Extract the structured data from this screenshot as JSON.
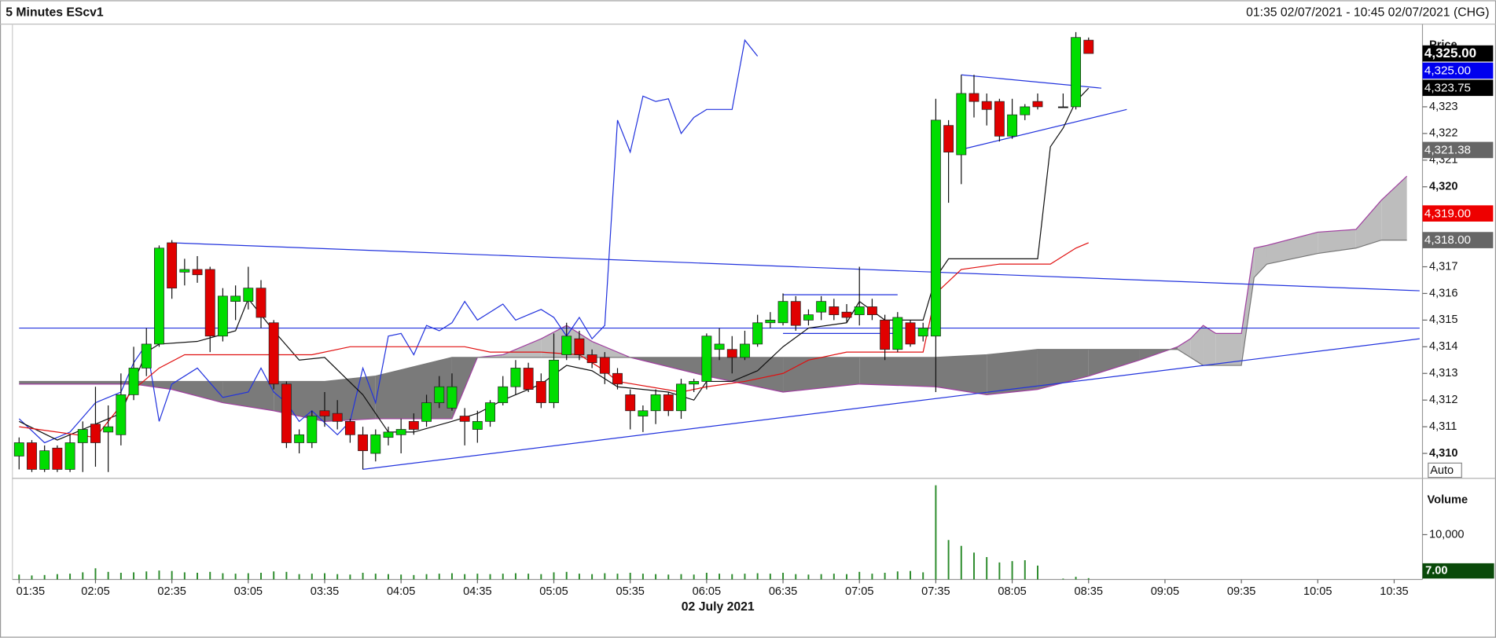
{
  "chart_data": {
    "type": "candlestick",
    "title": "5 Minutes EScv1",
    "range_text": "01:35 02/07/2021 - 10:45 02/07/2021 (CHG)",
    "date_label": "02 July 2021",
    "xlim": [
      "01:35",
      "10:45"
    ],
    "xticks": [
      "01:35",
      "02:05",
      "02:35",
      "03:05",
      "03:35",
      "04:05",
      "04:35",
      "05:05",
      "05:35",
      "06:05",
      "06:35",
      "07:05",
      "07:35",
      "08:05",
      "08:35",
      "09:05",
      "09:35",
      "10:05",
      "10:35"
    ],
    "ylim": [
      4309.1,
      4326.1
    ],
    "yticks": [
      {
        "value": 4310,
        "label": "4,310"
      },
      {
        "value": 4311,
        "label": "4,311"
      },
      {
        "value": 4312,
        "label": "4,312"
      },
      {
        "value": 4313,
        "label": "4,313"
      },
      {
        "value": 4314,
        "label": "4,314"
      },
      {
        "value": 4315,
        "label": "4,315"
      },
      {
        "value": 4316,
        "label": "4,316"
      },
      {
        "value": 4317,
        "label": "4,317"
      },
      {
        "value": 4320,
        "label": "4,320"
      },
      {
        "value": 4321,
        "label": "4,321"
      },
      {
        "value": 4322,
        "label": "4,322"
      },
      {
        "value": 4323,
        "label": "4,323"
      }
    ],
    "axis_label": "Price",
    "auto_button": "Auto",
    "up_color": "#00dd00",
    "down_color": "#e00000",
    "x": [
      "01:35",
      "01:40",
      "01:45",
      "01:50",
      "01:55",
      "02:00",
      "02:05",
      "02:10",
      "02:15",
      "02:20",
      "02:25",
      "02:30",
      "02:35",
      "02:40",
      "02:45",
      "02:50",
      "02:55",
      "03:00",
      "03:05",
      "03:10",
      "03:15",
      "03:20",
      "03:25",
      "03:30",
      "03:35",
      "03:40",
      "03:45",
      "03:50",
      "03:55",
      "04:00",
      "04:05",
      "04:10",
      "04:15",
      "04:20",
      "04:25",
      "04:30",
      "04:35",
      "04:40",
      "04:45",
      "04:50",
      "04:55",
      "05:00",
      "05:05",
      "05:10",
      "05:15",
      "05:20",
      "05:25",
      "05:30",
      "05:35",
      "05:40",
      "05:45",
      "05:50",
      "05:55",
      "06:00",
      "06:05",
      "06:10",
      "06:15",
      "06:20",
      "06:25",
      "06:30",
      "06:35",
      "06:40",
      "06:45",
      "06:50",
      "06:55",
      "07:00",
      "07:05",
      "07:10",
      "07:15",
      "07:20",
      "07:25",
      "07:30",
      "07:35",
      "07:40",
      "07:45",
      "07:50",
      "07:55",
      "08:00",
      "08:05",
      "08:10",
      "08:15",
      "08:25",
      "08:30",
      "08:35"
    ],
    "open": [
      4309.9,
      4310.4,
      4309.4,
      4310.2,
      4309.4,
      4310.4,
      4311.1,
      4310.8,
      4310.7,
      4312.2,
      4313.2,
      4314.1,
      4317.9,
      4316.8,
      4316.9,
      4316.9,
      4314.4,
      4315.7,
      4315.7,
      4316.2,
      4314.9,
      4312.6,
      4310.4,
      4310.4,
      4311.6,
      4311.5,
      4311.2,
      4310.7,
      4310.0,
      4310.6,
      4310.7,
      4311.2,
      4311.2,
      4311.9,
      4311.7,
      4311.4,
      4310.9,
      4311.2,
      4311.9,
      4312.5,
      4313.2,
      4312.7,
      4311.9,
      4313.7,
      4314.3,
      4313.7,
      4313.6,
      4313.0,
      4312.2,
      4311.4,
      4311.6,
      4312.2,
      4311.6,
      4312.6,
      4312.7,
      4313.9,
      4313.9,
      4313.6,
      4314.1,
      4314.9,
      4314.9,
      4315.7,
      4315.0,
      4315.3,
      4315.5,
      4315.3,
      4315.2,
      4315.5,
      4315.0,
      4313.9,
      4314.9,
      4314.4,
      4314.4,
      4322.3,
      4321.2,
      4323.5,
      4323.2,
      4323.2,
      4321.9,
      4322.7,
      4323.2,
      4323.0,
      4323.0,
      4325.5
    ],
    "high": [
      4310.6,
      4310.5,
      4310.3,
      4310.3,
      4310.7,
      4311.2,
      4312.5,
      4311.8,
      4313.0,
      4314.0,
      4314.7,
      4317.8,
      4318.0,
      4317.3,
      4317.4,
      4317.0,
      4316.2,
      4316.3,
      4317.0,
      4316.5,
      4315.0,
      4312.7,
      4310.9,
      4311.6,
      4312.3,
      4312.0,
      4311.3,
      4311.0,
      4310.9,
      4311.0,
      4311.3,
      4311.5,
      4312.2,
      4312.9,
      4313.0,
      4311.7,
      4311.6,
      4312.0,
      4312.9,
      4313.5,
      4313.4,
      4313.0,
      4314.5,
      4314.9,
      4314.6,
      4313.9,
      4313.8,
      4313.2,
      4312.4,
      4311.8,
      4312.4,
      4312.3,
      4312.8,
      4312.8,
      4314.5,
      4314.7,
      4314.4,
      4314.6,
      4315.2,
      4315.3,
      4316.0,
      4315.9,
      4315.4,
      4315.9,
      4315.8,
      4315.6,
      4317.0,
      4315.8,
      4315.2,
      4315.3,
      4315.0,
      4314.9,
      4323.3,
      4322.5,
      4324.2,
      4324.2,
      4323.5,
      4323.3,
      4323.3,
      4323.1,
      4323.5,
      4323.5,
      4325.8,
      4325.6
    ],
    "low": [
      4309.4,
      4309.3,
      4309.3,
      4309.3,
      4309.3,
      4309.3,
      4309.5,
      4309.3,
      4310.3,
      4312.0,
      4312.9,
      4314.0,
      4315.8,
      4316.3,
      4316.4,
      4313.8,
      4314.2,
      4315.0,
      4315.4,
      4314.7,
      4312.4,
      4310.2,
      4310.0,
      4310.2,
      4311.0,
      4310.9,
      4310.4,
      4309.4,
      4309.7,
      4310.3,
      4310.0,
      4310.7,
      4311.0,
      4311.7,
      4311.6,
      4310.3,
      4310.4,
      4311.0,
      4311.8,
      4312.2,
      4312.3,
      4311.7,
      4311.7,
      4313.5,
      4313.5,
      4313.2,
      4312.6,
      4312.4,
      4310.9,
      4310.8,
      4311.1,
      4311.4,
      4311.3,
      4312.3,
      4312.4,
      4313.5,
      4313.0,
      4313.5,
      4314.0,
      4314.7,
      4314.8,
      4314.6,
      4314.8,
      4315.0,
      4315.0,
      4314.9,
      4314.8,
      4315.0,
      4313.5,
      4313.8,
      4314.0,
      4314.2,
      4312.3,
      4319.4,
      4320.1,
      4322.6,
      4322.3,
      4321.7,
      4321.8,
      4322.5,
      4322.9,
      4323.0,
      4322.9,
      4325.0
    ],
    "close": [
      4310.4,
      4309.4,
      4310.1,
      4309.4,
      4310.4,
      4310.9,
      4310.4,
      4311.0,
      4312.2,
      4313.2,
      4314.1,
      4317.7,
      4316.2,
      4316.9,
      4316.7,
      4314.4,
      4315.9,
      4315.9,
      4316.2,
      4315.1,
      4312.6,
      4310.4,
      4310.7,
      4311.4,
      4311.4,
      4311.2,
      4310.7,
      4310.1,
      4310.7,
      4310.8,
      4310.9,
      4310.9,
      4311.9,
      4312.5,
      4312.5,
      4311.2,
      4311.2,
      4311.9,
      4312.5,
      4313.2,
      4312.4,
      4311.9,
      4313.5,
      4314.4,
      4313.7,
      4313.4,
      4313.0,
      4312.6,
      4311.6,
      4311.6,
      4312.2,
      4311.6,
      4312.6,
      4312.7,
      4314.4,
      4314.1,
      4313.6,
      4314.1,
      4314.9,
      4315.0,
      4315.7,
      4314.8,
      4315.2,
      4315.7,
      4315.2,
      4315.1,
      4315.5,
      4315.2,
      4313.9,
      4315.1,
      4314.1,
      4314.7,
      4322.5,
      4321.3,
      4323.5,
      4323.2,
      4322.9,
      4321.9,
      4322.7,
      4323.0,
      4323.0,
      4323.0,
      4325.6,
      4325.0
    ],
    "overlays": [
      {
        "color": "#2233dd",
        "x": [
          "01:35",
          "01:45",
          "01:55",
          "02:05",
          "02:15",
          "02:20",
          "02:25",
          "02:30",
          "02:35",
          "02:45",
          "02:55",
          "03:05",
          "03:10",
          "03:15",
          "03:20",
          "03:25",
          "03:30",
          "03:40",
          "03:45",
          "03:50",
          "03:55",
          "04:00",
          "04:05",
          "04:10",
          "04:15",
          "04:20",
          "04:25",
          "04:30",
          "04:35",
          "04:40",
          "04:45",
          "04:50",
          "04:55",
          "05:00",
          "05:05",
          "05:10",
          "05:15",
          "05:20",
          "05:25",
          "05:30",
          "05:35",
          "05:40",
          "05:45",
          "05:50",
          "05:55",
          "06:00",
          "06:05",
          "06:15",
          "06:20",
          "06:25"
        ],
        "values": [
          4311.3,
          4310.4,
          4310.8,
          4311.9,
          4312.3,
          4313.4,
          4314.1,
          4311.2,
          4312.6,
          4313.2,
          4312.1,
          4312.3,
          4313.2,
          4312.3,
          4311.9,
          4311.2,
          4311.6,
          4310.7,
          4311.2,
          4313.2,
          4311.9,
          4314.4,
          4314.5,
          4313.7,
          4314.8,
          4314.6,
          4314.9,
          4315.7,
          4315.0,
          4315.3,
          4315.6,
          4315.0,
          4315.2,
          4315.4,
          4315.1,
          4314.4,
          4315.1,
          4314.3,
          4314.8,
          4322.5,
          4321.3,
          4323.4,
          4323.2,
          4323.3,
          4322.0,
          4322.6,
          4322.9,
          4322.9,
          4325.5,
          4324.9
        ]
      },
      {
        "color": "#111111",
        "x": [
          "01:35",
          "01:50",
          "02:00",
          "02:15",
          "02:25",
          "02:30",
          "02:45",
          "03:00",
          "03:05",
          "03:15",
          "03:25",
          "03:35",
          "03:50",
          "04:00",
          "04:10",
          "04:25",
          "04:35",
          "04:45",
          "05:00",
          "05:10",
          "05:20",
          "05:30",
          "05:40",
          "05:50",
          "06:00",
          "06:05",
          "06:15",
          "06:25",
          "06:35",
          "06:45",
          "07:00",
          "07:05",
          "07:15",
          "07:30",
          "07:35",
          "07:40",
          "08:00",
          "08:15",
          "08:20",
          "08:25",
          "08:30",
          "08:35"
        ],
        "values": [
          4311.2,
          4310.5,
          4310.9,
          4311.5,
          4313.8,
          4314.1,
          4314.2,
          4314.6,
          4315.8,
          4314.6,
          4313.5,
          4313.6,
          4312.2,
          4310.8,
          4310.8,
          4311.2,
          4311.5,
          4312.0,
          4312.6,
          4313.3,
          4313.1,
          4312.5,
          4312.4,
          4312.3,
          4312.0,
          4312.7,
          4312.7,
          4313.1,
          4314.0,
          4314.7,
          4314.9,
          4315.7,
          4315.0,
          4315.0,
          4316.6,
          4317.3,
          4317.3,
          4317.3,
          4321.5,
          4322.2,
          4323.2,
          4323.7
        ]
      },
      {
        "color": "#e01010",
        "x": [
          "01:35",
          "02:05",
          "02:20",
          "02:30",
          "02:40",
          "03:30",
          "03:45",
          "04:05",
          "04:30",
          "04:40",
          "05:00",
          "05:15",
          "05:25",
          "05:30",
          "05:55",
          "06:05",
          "06:20",
          "06:35",
          "06:45",
          "07:00",
          "07:30",
          "07:35",
          "07:45",
          "08:00",
          "08:20",
          "08:30",
          "08:35"
        ],
        "values": [
          4311.0,
          4310.6,
          4312.4,
          4313.2,
          4313.7,
          4313.7,
          4314.0,
          4314.0,
          4314.0,
          4313.8,
          4313.8,
          4313.7,
          4313.1,
          4312.7,
          4312.3,
          4312.5,
          4312.7,
          4313.0,
          4313.5,
          4313.8,
          4313.8,
          4316.0,
          4316.9,
          4317.1,
          4317.1,
          4317.7,
          4317.9
        ]
      }
    ],
    "cloud": {
      "x": [
        "01:35",
        "02:20",
        "02:35",
        "02:55",
        "03:15",
        "03:35",
        "03:55",
        "04:25",
        "04:35",
        "04:45",
        "05:00",
        "05:10",
        "05:20",
        "05:35",
        "06:05",
        "06:35",
        "07:05",
        "07:35",
        "07:55",
        "08:15",
        "08:35",
        "08:55",
        "09:10",
        "09:15",
        "09:20",
        "09:25",
        "09:35",
        "09:40",
        "09:45",
        "10:05",
        "10:20",
        "10:30",
        "10:40"
      ],
      "span_a": [
        4312.6,
        4312.6,
        4312.4,
        4311.9,
        4311.6,
        4311.2,
        4311.3,
        4311.3,
        4313.6,
        4313.7,
        4314.3,
        4314.8,
        4314.2,
        4313.6,
        4312.9,
        4312.3,
        4312.6,
        4312.5,
        4312.2,
        4312.4,
        4312.9,
        4313.5,
        4314.0,
        4314.3,
        4314.8,
        4314.5,
        4314.5,
        4317.7,
        4317.8,
        4318.3,
        4318.4,
        4319.5,
        4320.4
      ],
      "span_b": [
        4312.7,
        4312.7,
        4312.7,
        4312.7,
        4312.7,
        4312.7,
        4312.9,
        4313.6,
        4313.6,
        4313.6,
        4313.6,
        4313.6,
        4313.6,
        4313.6,
        4313.6,
        4313.6,
        4313.6,
        4313.6,
        4313.7,
        4313.9,
        4313.9,
        4313.9,
        4313.9,
        4313.6,
        4313.3,
        4313.3,
        4313.3,
        4316.6,
        4317.1,
        4317.5,
        4317.7,
        4318.0,
        4318.0
      ],
      "color_a": "#a040a0",
      "color_b": "#777777"
    },
    "trendlines": [
      {
        "color": "#2233dd",
        "x": [
          "01:35",
          "10:45"
        ],
        "y": [
          4314.7,
          4314.7
        ]
      },
      {
        "color": "#2233dd",
        "x": [
          "02:35",
          "10:45"
        ],
        "y": [
          4317.9,
          4316.1
        ]
      },
      {
        "color": "#2233dd",
        "x": [
          "03:50",
          "10:45"
        ],
        "y": [
          4309.4,
          4314.3
        ]
      },
      {
        "color": "#2233dd",
        "x": [
          "07:45",
          "08:40"
        ],
        "y": [
          4324.2,
          4323.7
        ]
      },
      {
        "color": "#2233dd",
        "x": [
          "07:45",
          "08:50"
        ],
        "y": [
          4321.4,
          4322.9
        ]
      },
      {
        "color": "#2233dd",
        "x": [
          "06:35",
          "07:20"
        ],
        "y": [
          4315.95,
          4315.95
        ]
      },
      {
        "color": "#2233dd",
        "x": [
          "06:35",
          "07:20"
        ],
        "y": [
          4314.5,
          4314.5
        ]
      }
    ],
    "price_labels": [
      {
        "value": 4325.0,
        "label": "4,325.00",
        "color": "#000000"
      },
      {
        "value": 4325.0,
        "label": "4,325.00",
        "color": "#0000ee"
      },
      {
        "value": 4323.75,
        "label": "4,323.75",
        "color": "#000000"
      },
      {
        "value": 4321.38,
        "label": "4,321.38",
        "color": "#666666"
      },
      {
        "value": 4319.0,
        "label": "4,319.00",
        "color": "#ee0000"
      },
      {
        "value": 4318.0,
        "label": "4,318.00",
        "color": "#666666"
      }
    ],
    "volume": {
      "label": "Volume",
      "color": "#2a8a2a",
      "ylim": [
        0,
        21700
      ],
      "yticks": [
        {
          "value": 10000,
          "label": "10,000"
        }
      ],
      "last_label": "7.00",
      "values": [
        1100,
        900,
        1000,
        1200,
        1300,
        1600,
        2500,
        1700,
        1500,
        1600,
        1800,
        2000,
        1900,
        1600,
        1500,
        1700,
        1400,
        1300,
        1400,
        1500,
        1800,
        1700,
        1200,
        1300,
        1400,
        1200,
        1100,
        1500,
        1300,
        1200,
        1100,
        1000,
        1200,
        1300,
        1400,
        1200,
        1300,
        1200,
        1300,
        1400,
        1300,
        1200,
        1600,
        1700,
        1300,
        1200,
        1400,
        1300,
        1500,
        1300,
        1200,
        1100,
        1200,
        1100,
        1500,
        1300,
        1200,
        1300,
        1400,
        1300,
        1500,
        1200,
        1100,
        1200,
        1300,
        1200,
        1700,
        1300,
        1500,
        1800,
        1900,
        1600,
        21000,
        8800,
        7500,
        6000,
        5000,
        3800,
        4100,
        4300,
        3100,
        200,
        600,
        300
      ]
    }
  }
}
